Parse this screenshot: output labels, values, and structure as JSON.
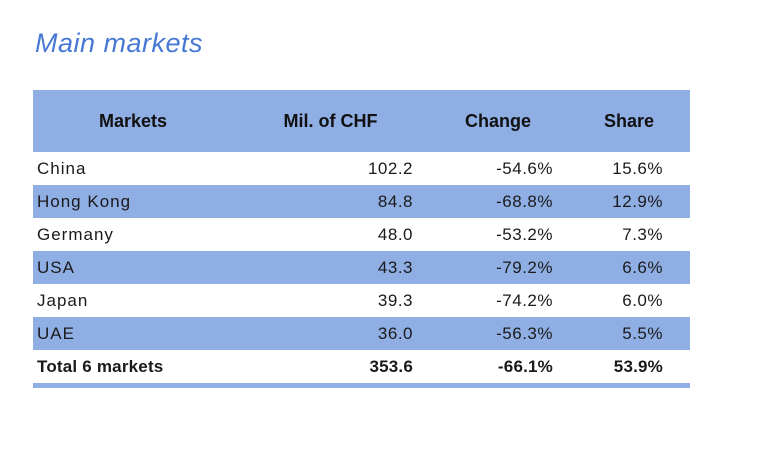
{
  "title": "Main markets",
  "colors": {
    "accent_blue": "#8faee3",
    "title_blue": "#4678d4",
    "text": "#1a1a1a"
  },
  "chart_data": {
    "type": "table",
    "title": "Main markets",
    "columns": [
      "Markets",
      "Mil. of CHF",
      "Change",
      "Share"
    ],
    "rows": [
      [
        "China",
        "102.2",
        "-54.6%",
        "15.6%"
      ],
      [
        "Hong Kong",
        "84.8",
        "-68.8%",
        "12.9%"
      ],
      [
        "Germany",
        "48.0",
        "-53.2%",
        "7.3%"
      ],
      [
        "USA",
        "43.3",
        "-79.2%",
        "6.6%"
      ],
      [
        "Japan",
        "39.3",
        "-74.2%",
        "6.0%"
      ],
      [
        "UAE",
        "36.0",
        "-56.3%",
        "5.5%"
      ]
    ],
    "total_row": [
      "Total 6 markets",
      "353.6",
      "-66.1%",
      "53.9%"
    ],
    "layout": {
      "striped_rows": "even rows blue",
      "header_background": "#8faee3",
      "total_row_style": "bold with thick blue bottom border"
    }
  }
}
